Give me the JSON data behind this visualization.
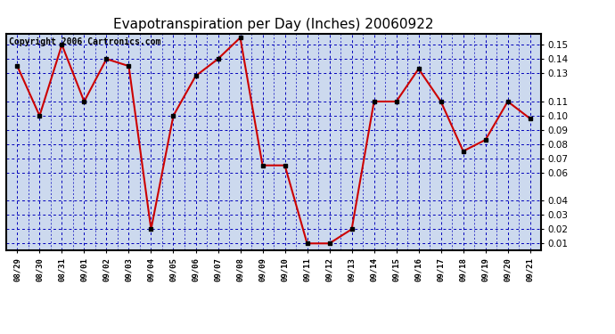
{
  "title": "Evapotranspiration per Day (Inches) 20060922",
  "copyright": "Copyright 2006 Cartronics.com",
  "dates": [
    "08/29",
    "08/30",
    "08/31",
    "09/01",
    "09/02",
    "09/03",
    "09/04",
    "09/05",
    "09/06",
    "09/07",
    "09/08",
    "09/09",
    "09/10",
    "09/11",
    "09/12",
    "09/13",
    "09/14",
    "09/15",
    "09/16",
    "09/17",
    "09/18",
    "09/19",
    "09/20",
    "09/21"
  ],
  "values": [
    0.135,
    0.1,
    0.15,
    0.11,
    0.14,
    0.135,
    0.02,
    0.1,
    0.128,
    0.14,
    0.155,
    0.065,
    0.065,
    0.01,
    0.01,
    0.02,
    0.11,
    0.11,
    0.133,
    0.11,
    0.075,
    0.083,
    0.11,
    0.098
  ],
  "line_color": "#cc0000",
  "marker_color": "#000000",
  "bg_color": "#ffffff",
  "plot_bg_color": "#ccd9ee",
  "grid_color": "#0000bb",
  "yticks": [
    0.01,
    0.02,
    0.03,
    0.04,
    0.06,
    0.07,
    0.08,
    0.09,
    0.1,
    0.11,
    0.13,
    0.14,
    0.15
  ],
  "title_fontsize": 11,
  "copyright_fontsize": 7
}
